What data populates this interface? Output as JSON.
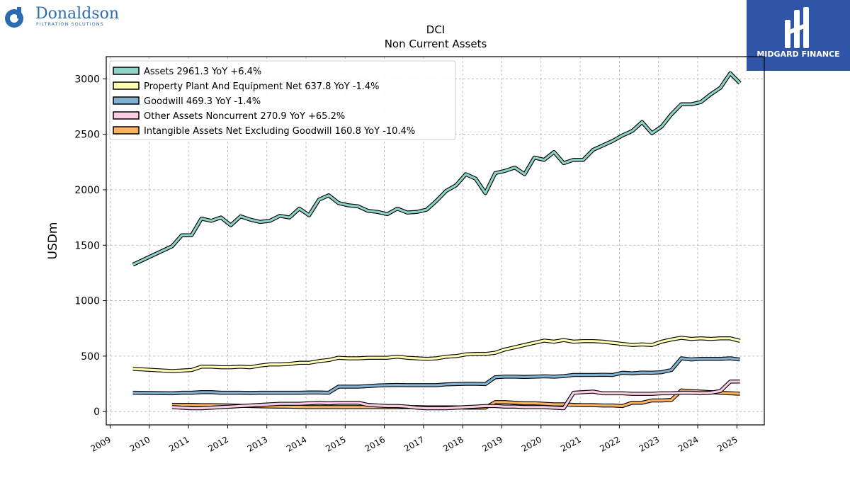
{
  "branding": {
    "left_logo_name": "Donaldson",
    "left_logo_tagline": "FILTRATION SOLUTIONS",
    "right_logo_text": "MIDGARD FINANCE",
    "colors": {
      "donaldson_blue": "#2b6cb0",
      "midgard_bg": "#2f56a6"
    }
  },
  "chart_data": {
    "type": "line",
    "title": "DCI",
    "subtitle": "Non Current  Assets",
    "xlabel": "",
    "ylabel": "USDm",
    "ylim": [
      -120,
      3200
    ],
    "xlim": [
      2008.9,
      2025.7
    ],
    "yticks": [
      0,
      500,
      1000,
      1500,
      2000,
      2500,
      3000
    ],
    "xticks": [
      "2009",
      "2010",
      "2011",
      "2012",
      "2013",
      "2014",
      "2015",
      "2016",
      "2017",
      "2018",
      "2019",
      "2020",
      "2021",
      "2022",
      "2023",
      "2024",
      "2025"
    ],
    "grid": true,
    "legend_position": "top-left",
    "series": [
      {
        "name": "Assets  2961.3 YoY +6.4%",
        "color": "#8dd3c7",
        "x": [
          2009.58,
          2010.58,
          2010.83,
          2011.08,
          2011.33,
          2011.58,
          2011.83,
          2012.08,
          2012.33,
          2012.58,
          2012.83,
          2013.08,
          2013.33,
          2013.58,
          2013.83,
          2014.08,
          2014.33,
          2014.58,
          2014.83,
          2015.08,
          2015.33,
          2015.58,
          2015.83,
          2016.08,
          2016.33,
          2016.58,
          2016.83,
          2017.08,
          2017.33,
          2017.58,
          2017.83,
          2018.08,
          2018.33,
          2018.58,
          2018.83,
          2019.08,
          2019.33,
          2019.58,
          2019.83,
          2020.08,
          2020.33,
          2020.58,
          2020.83,
          2021.08,
          2021.33,
          2021.58,
          2021.83,
          2022.08,
          2022.33,
          2022.58,
          2022.83,
          2023.08,
          2023.33,
          2023.58,
          2023.83,
          2024.08,
          2024.33,
          2024.58,
          2024.83,
          2025.08
        ],
        "y": [
          1325,
          1490,
          1590,
          1590,
          1740,
          1720,
          1750,
          1680,
          1760,
          1730,
          1710,
          1720,
          1765,
          1750,
          1830,
          1770,
          1910,
          1950,
          1880,
          1860,
          1850,
          1810,
          1800,
          1780,
          1830,
          1795,
          1800,
          1820,
          1900,
          1990,
          2040,
          2140,
          2100,
          1970,
          2150,
          2170,
          2200,
          2140,
          2290,
          2270,
          2340,
          2240,
          2270,
          2270,
          2360,
          2400,
          2440,
          2490,
          2530,
          2610,
          2510,
          2570,
          2680,
          2770,
          2770,
          2790,
          2860,
          2920,
          3050,
          2961
        ]
      },
      {
        "name": "Property Plant And Equipment Net  637.8 YoY -1.4%",
        "color": "#ffffb3",
        "x": [
          2009.58,
          2010.58,
          2010.83,
          2011.08,
          2011.33,
          2011.58,
          2011.83,
          2012.08,
          2012.33,
          2012.58,
          2012.83,
          2013.08,
          2013.33,
          2013.58,
          2013.83,
          2014.08,
          2014.33,
          2014.58,
          2014.83,
          2015.08,
          2015.33,
          2015.58,
          2015.83,
          2016.08,
          2016.33,
          2016.58,
          2016.83,
          2017.08,
          2017.33,
          2017.58,
          2017.83,
          2018.08,
          2018.33,
          2018.58,
          2018.83,
          2019.08,
          2019.33,
          2019.58,
          2019.83,
          2020.08,
          2020.33,
          2020.58,
          2020.83,
          2021.08,
          2021.33,
          2021.58,
          2021.83,
          2022.08,
          2022.33,
          2022.58,
          2022.83,
          2023.08,
          2023.33,
          2023.58,
          2023.83,
          2024.08,
          2024.33,
          2024.58,
          2024.83,
          2025.08
        ],
        "y": [
          385,
          365,
          370,
          375,
          405,
          405,
          400,
          400,
          405,
          400,
          415,
          425,
          425,
          430,
          440,
          440,
          455,
          465,
          485,
          480,
          480,
          485,
          485,
          485,
          495,
          485,
          480,
          475,
          480,
          495,
          500,
          515,
          520,
          520,
          530,
          560,
          580,
          600,
          620,
          640,
          630,
          645,
          630,
          635,
          635,
          630,
          620,
          610,
          600,
          605,
          600,
          630,
          650,
          665,
          655,
          660,
          655,
          660,
          660,
          638
        ]
      },
      {
        "name": "Goodwill  469.3 YoY -1.4%",
        "color": "#80b1d3",
        "x": [
          2009.58,
          2010.58,
          2010.83,
          2011.08,
          2011.33,
          2011.58,
          2011.83,
          2012.08,
          2012.33,
          2012.58,
          2012.83,
          2013.08,
          2013.33,
          2013.58,
          2013.83,
          2014.08,
          2014.33,
          2014.58,
          2014.83,
          2015.08,
          2015.33,
          2015.58,
          2015.83,
          2016.08,
          2016.33,
          2016.58,
          2016.83,
          2017.08,
          2017.33,
          2017.58,
          2017.83,
          2018.08,
          2018.33,
          2018.58,
          2018.83,
          2019.08,
          2019.33,
          2019.58,
          2019.83,
          2020.08,
          2020.33,
          2020.58,
          2020.83,
          2021.08,
          2021.33,
          2021.58,
          2021.83,
          2022.08,
          2022.33,
          2022.58,
          2022.83,
          2023.08,
          2023.33,
          2023.58,
          2023.83,
          2024.08,
          2024.33,
          2024.58,
          2024.83,
          2025.08
        ],
        "y": [
          170,
          165,
          170,
          170,
          175,
          175,
          170,
          170,
          170,
          168,
          170,
          170,
          170,
          170,
          170,
          172,
          172,
          170,
          225,
          225,
          225,
          230,
          235,
          238,
          240,
          238,
          238,
          238,
          238,
          245,
          248,
          250,
          250,
          248,
          310,
          315,
          315,
          312,
          315,
          318,
          315,
          320,
          330,
          330,
          330,
          332,
          330,
          350,
          345,
          352,
          350,
          355,
          375,
          480,
          470,
          475,
          475,
          475,
          480,
          469
        ]
      },
      {
        "name": "Other Assets Noncurrent  270.9 YoY +65.2%",
        "color": "#fccde5",
        "x": [
          2010.58,
          2010.83,
          2011.08,
          2011.33,
          2011.58,
          2011.83,
          2012.08,
          2012.33,
          2012.58,
          2012.83,
          2013.08,
          2013.33,
          2013.58,
          2013.83,
          2014.08,
          2014.33,
          2014.58,
          2014.83,
          2015.08,
          2015.33,
          2015.58,
          2015.83,
          2016.08,
          2016.33,
          2016.58,
          2016.83,
          2017.08,
          2017.33,
          2017.58,
          2017.83,
          2018.08,
          2018.33,
          2018.58,
          2018.83,
          2019.08,
          2019.33,
          2019.58,
          2019.83,
          2020.08,
          2020.33,
          2020.58,
          2020.83,
          2021.08,
          2021.33,
          2021.58,
          2021.83,
          2022.08,
          2022.33,
          2022.58,
          2022.83,
          2023.08,
          2023.33,
          2023.58,
          2023.83,
          2024.08,
          2024.33,
          2024.58,
          2024.83,
          2025.08
        ],
        "y": [
          40,
          35,
          30,
          30,
          35,
          40,
          45,
          50,
          55,
          60,
          65,
          70,
          70,
          70,
          75,
          80,
          75,
          80,
          80,
          80,
          60,
          55,
          50,
          50,
          45,
          35,
          30,
          30,
          30,
          35,
          40,
          45,
          50,
          50,
          45,
          45,
          40,
          40,
          40,
          35,
          30,
          170,
          175,
          180,
          165,
          165,
          165,
          160,
          160,
          160,
          165,
          165,
          170,
          170,
          165,
          170,
          185,
          270,
          271
        ]
      },
      {
        "name": "Intangible Assets Net Excluding Goodwill  160.8 YoY -10.4%",
        "color": "#fdb462",
        "x": [
          2010.58,
          2010.83,
          2011.08,
          2011.33,
          2011.58,
          2011.83,
          2012.08,
          2012.33,
          2012.58,
          2012.83,
          2013.08,
          2013.33,
          2013.58,
          2013.83,
          2014.08,
          2014.33,
          2014.58,
          2014.83,
          2015.08,
          2015.33,
          2015.58,
          2015.83,
          2016.08,
          2016.33,
          2016.58,
          2016.83,
          2017.08,
          2017.33,
          2017.58,
          2017.83,
          2018.08,
          2018.33,
          2018.58,
          2018.83,
          2019.08,
          2019.33,
          2019.58,
          2019.83,
          2020.08,
          2020.33,
          2020.58,
          2020.83,
          2021.08,
          2021.33,
          2021.58,
          2021.83,
          2022.08,
          2022.33,
          2022.58,
          2022.83,
          2023.08,
          2023.33,
          2023.58,
          2023.83,
          2024.08,
          2024.33,
          2024.58,
          2024.83,
          2025.08
        ],
        "y": [
          60,
          60,
          60,
          58,
          58,
          56,
          55,
          52,
          50,
          48,
          46,
          45,
          44,
          42,
          40,
          40,
          40,
          40,
          40,
          40,
          40,
          40,
          40,
          40,
          40,
          40,
          38,
          38,
          38,
          38,
          36,
          36,
          36,
          85,
          85,
          80,
          75,
          75,
          70,
          65,
          65,
          60,
          58,
          58,
          55,
          55,
          50,
          80,
          80,
          100,
          100,
          105,
          190,
          185,
          180,
          175,
          170,
          165,
          161
        ]
      }
    ]
  }
}
